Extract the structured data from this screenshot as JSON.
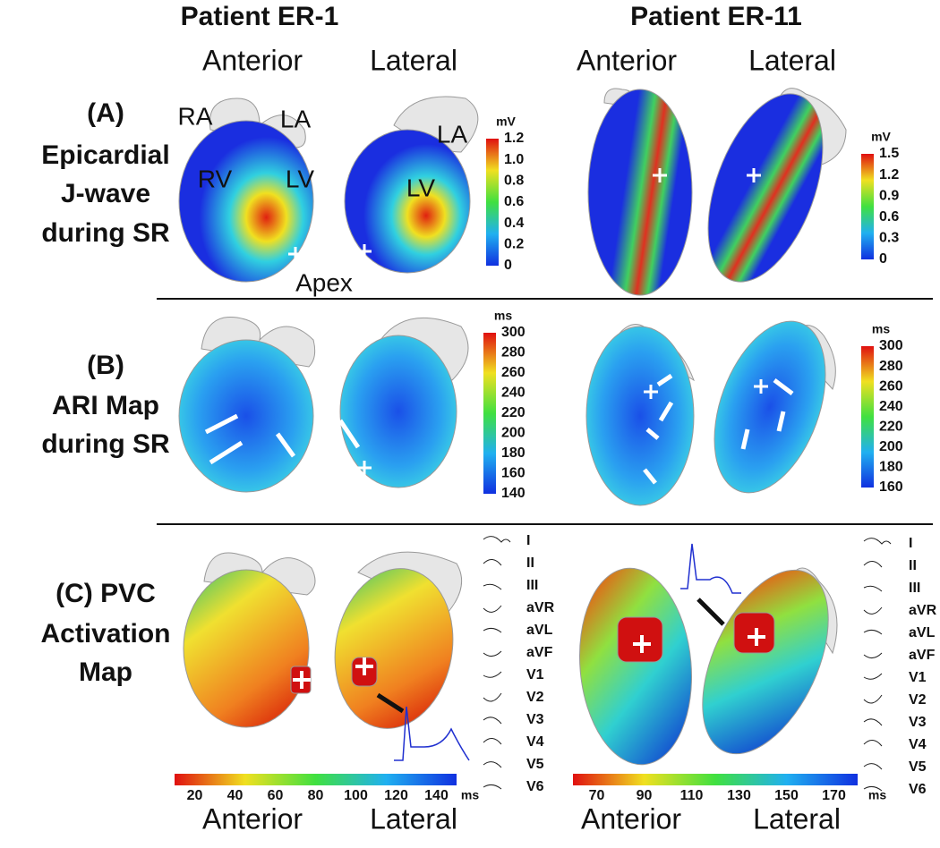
{
  "header": {
    "patients": [
      "Patient ER-1",
      "Patient ER-11"
    ],
    "views": [
      [
        "Anterior",
        "Lateral"
      ],
      [
        "Anterior",
        "Lateral"
      ]
    ]
  },
  "rows": [
    {
      "label": [
        "(A)",
        "Epicardial",
        "J-wave",
        "during SR"
      ],
      "anatomy": [
        "RA",
        "LA",
        "RV",
        "LV",
        "LA",
        "LV",
        "Apex"
      ],
      "colorbars": [
        {
          "unit": "mV",
          "ticks": [
            "1.2",
            "1.0",
            "0.8",
            "0.6",
            "0.4",
            "0.2",
            "0"
          ]
        },
        {
          "unit": "mV",
          "ticks": [
            "1.5",
            "1.2",
            "0.9",
            "0.6",
            "0.3",
            "0"
          ]
        }
      ]
    },
    {
      "label": [
        "(B)",
        "ARI Map",
        "during SR"
      ],
      "colorbars": [
        {
          "unit": "ms",
          "ticks": [
            "300",
            "280",
            "260",
            "240",
            "220",
            "200",
            "180",
            "160",
            "140"
          ]
        },
        {
          "unit": "ms",
          "ticks": [
            "300",
            "280",
            "260",
            "240",
            "220",
            "200",
            "180",
            "160"
          ]
        }
      ]
    },
    {
      "label": [
        "(C) PVC",
        "Activation",
        "Map"
      ],
      "leads": [
        [
          "I",
          "II",
          "III",
          "aVR",
          "aVL",
          "aVF",
          "V1",
          "V2",
          "V3",
          "V4",
          "V5",
          "V6"
        ],
        [
          "I",
          "II",
          "III",
          "aVR",
          "aVL",
          "aVF",
          "V1",
          "V2",
          "V3",
          "V4",
          "V5",
          "V6"
        ]
      ],
      "colorbars": [
        {
          "unit": "ms",
          "ticks": [
            "20",
            "40",
            "60",
            "80",
            "100",
            "120",
            "140"
          ]
        },
        {
          "unit": "ms",
          "ticks": [
            "70",
            "90",
            "110",
            "130",
            "150",
            "170"
          ]
        }
      ]
    }
  ],
  "footer": {
    "views": [
      [
        "Anterior",
        "Lateral"
      ],
      [
        "Anterior",
        "Lateral"
      ]
    ]
  }
}
